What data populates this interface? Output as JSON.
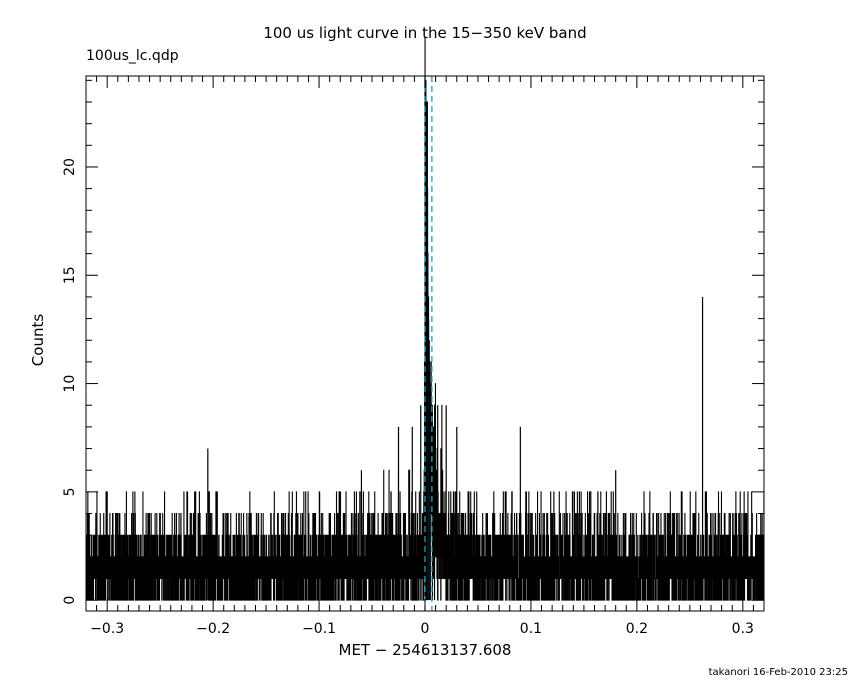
{
  "chart_data": {
    "type": "line",
    "title": "100 us light curve in the 15−350 keV band",
    "subtitle": "100us_lc.qdp",
    "xlabel": "MET − 254613137.608",
    "ylabel": "Counts",
    "footer": "takanori 16-Feb-2010 23:25",
    "xlim": [
      -0.32,
      0.32
    ],
    "ylim": [
      -0.5,
      24.2
    ],
    "x_ticks": [
      -0.3,
      -0.2,
      -0.1,
      0,
      0.1,
      0.2,
      0.3
    ],
    "x_tick_labels": [
      "−0.3",
      "−0.2",
      "−0.1",
      "0",
      "0.1",
      "0.2",
      "0.3"
    ],
    "y_ticks": [
      0,
      5,
      10,
      15,
      20
    ],
    "y_tick_labels": [
      "0",
      "5",
      "10",
      "15",
      "20"
    ],
    "bin_width": 0.0001,
    "background_level": 1.5,
    "reference_lines": [
      {
        "x": 0.0,
        "color": "#1f9fc0",
        "style": "dashed"
      },
      {
        "x": 0.0065,
        "color": "#1f9fc0",
        "style": "dashed"
      }
    ],
    "highlights": [
      {
        "x": 0.0,
        "y": 24
      },
      {
        "x": 0.0005,
        "y": 21
      },
      {
        "x": 0.001,
        "y": 18
      },
      {
        "x": 0.0015,
        "y": 16
      },
      {
        "x": 0.002,
        "y": 15
      },
      {
        "x": 0.003,
        "y": 13
      },
      {
        "x": 0.004,
        "y": 12
      },
      {
        "x": 0.005,
        "y": 10
      },
      {
        "x": 0.007,
        "y": 9
      },
      {
        "x": 0.009,
        "y": 8
      },
      {
        "x": 0.012,
        "y": 9
      },
      {
        "x": 0.015,
        "y": 7
      },
      {
        "x": 0.02,
        "y": 9
      },
      {
        "x": 0.03,
        "y": 8
      },
      {
        "x": -0.004,
        "y": 9
      },
      {
        "x": -0.012,
        "y": 8
      },
      {
        "x": -0.025,
        "y": 8
      },
      {
        "x": -0.06,
        "y": 6
      },
      {
        "x": -0.205,
        "y": 7
      },
      {
        "x": 0.09,
        "y": 8
      },
      {
        "x": 0.18,
        "y": 6
      },
      {
        "x": 0.262,
        "y": 14
      }
    ]
  }
}
